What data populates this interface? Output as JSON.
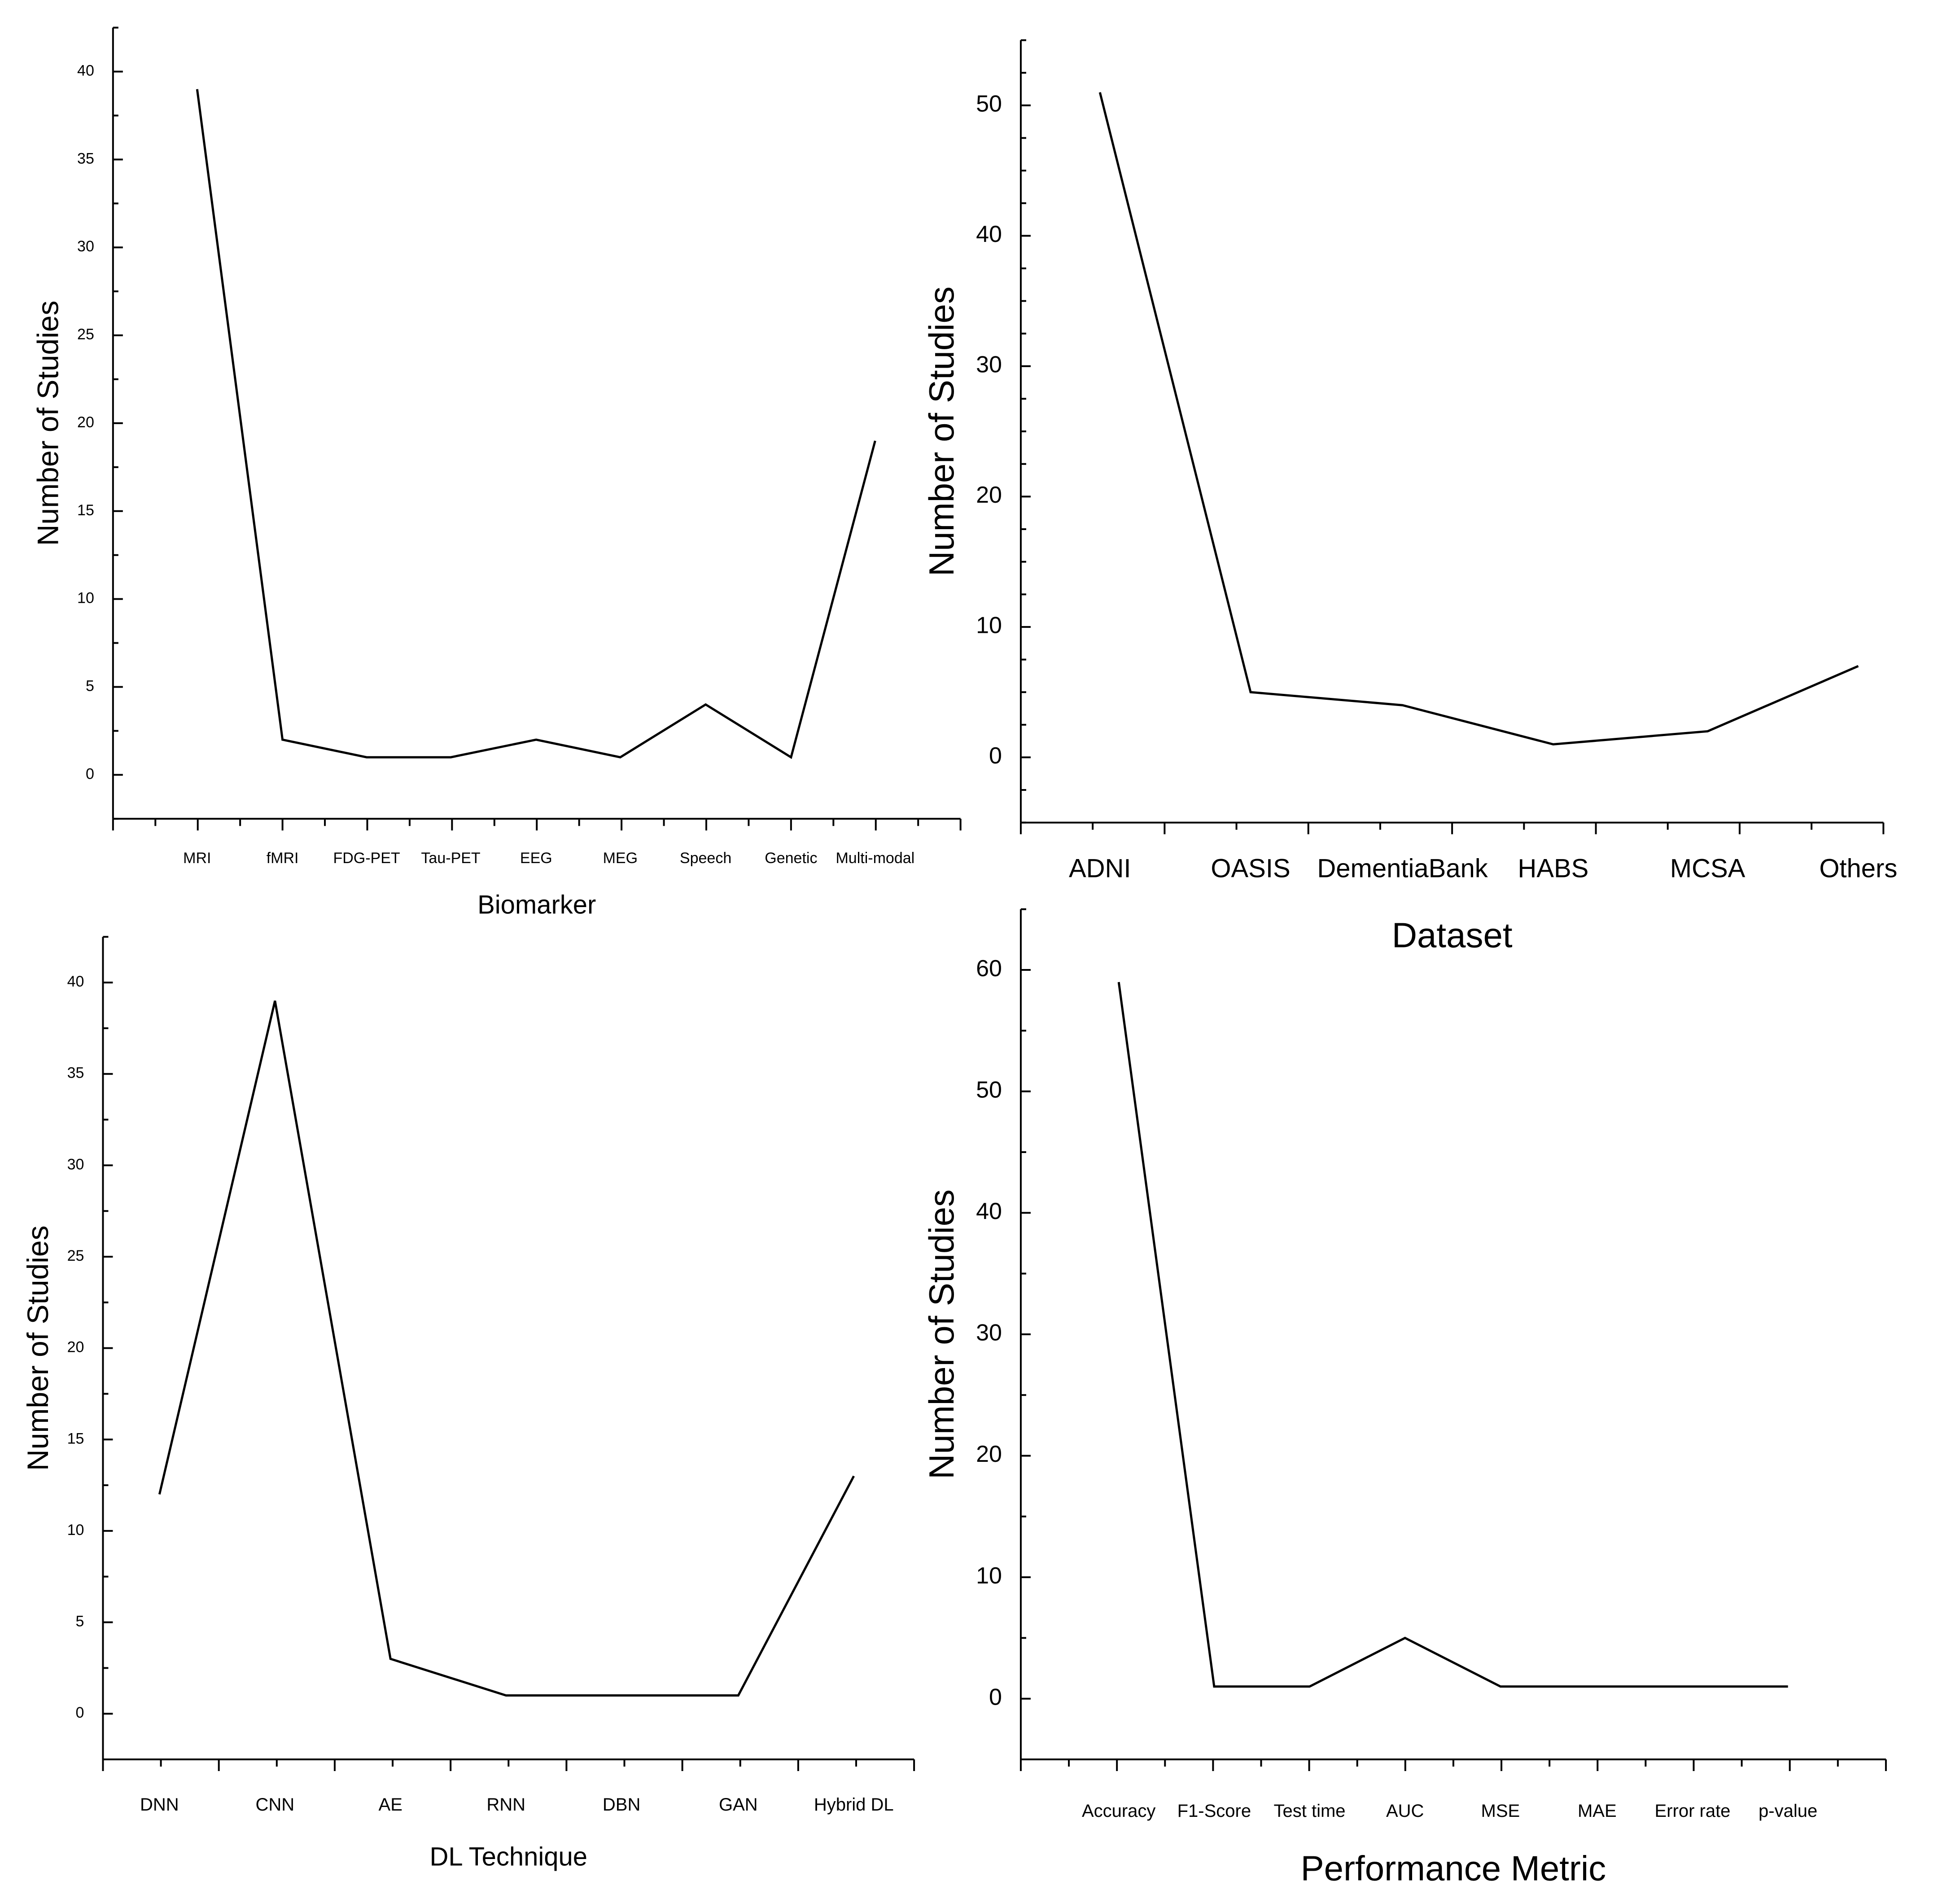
{
  "chart_data": [
    {
      "type": "line",
      "panel": "top-left",
      "xlabel": "Biomarker",
      "ylabel": "Number of Studies",
      "categories": [
        "MRI",
        "fMRI",
        "FDG-PET",
        "Tau-PET",
        "EEG",
        "MEG",
        "Speech",
        "Genetic",
        "Multi-modal"
      ],
      "values": [
        39,
        2,
        1,
        1,
        2,
        1,
        4,
        1,
        19
      ],
      "ylim": [
        -2.5,
        42.5
      ],
      "yticks": [
        0,
        5,
        10,
        15,
        20,
        25,
        30,
        35,
        40
      ],
      "ytick_labels": [
        "0",
        "5",
        "10",
        "15",
        "20",
        "25",
        "30",
        "35",
        "40"
      ]
    },
    {
      "type": "line",
      "panel": "top-right",
      "xlabel": "Dataset",
      "ylabel": "Number of Studies",
      "categories": [
        "ADNI",
        "OASIS",
        "DementiaBank",
        "HABS",
        "MCSA",
        "Others"
      ],
      "values": [
        51,
        5,
        4,
        1,
        2,
        7
      ],
      "ylim": [
        -5,
        55
      ],
      "yticks": [
        0,
        10,
        20,
        30,
        40,
        50
      ],
      "ytick_labels": [
        "0",
        "10",
        "20",
        "30",
        "40",
        "50"
      ]
    },
    {
      "type": "line",
      "panel": "bottom-left",
      "xlabel": "DL Technique",
      "ylabel": "Number of Studies",
      "categories": [
        "DNN",
        "CNN",
        "AE",
        "RNN",
        "DBN",
        "GAN",
        "Hybrid DL"
      ],
      "values": [
        12,
        39,
        3,
        1,
        1,
        1,
        13
      ],
      "ylim": [
        -2.5,
        42.5
      ],
      "yticks": [
        0,
        5,
        10,
        15,
        20,
        25,
        30,
        35,
        40
      ],
      "ytick_labels": [
        "0",
        "5",
        "10",
        "15",
        "20",
        "25",
        "30",
        "35",
        "40"
      ]
    },
    {
      "type": "line",
      "panel": "bottom-right",
      "xlabel": "Performance Metric",
      "ylabel": "Number of Studies",
      "categories": [
        "Accuracy",
        "F1-Score",
        "Test time",
        "AUC",
        "MSE",
        "MAE",
        "Error rate",
        "p-value"
      ],
      "values": [
        59,
        1,
        1,
        5,
        1,
        1,
        1,
        1
      ],
      "ylim": [
        -5,
        65
      ],
      "yticks": [
        0,
        10,
        20,
        30,
        40,
        50,
        60
      ],
      "ytick_labels": [
        "0",
        "10",
        "20",
        "30",
        "40",
        "50",
        "60"
      ]
    }
  ]
}
